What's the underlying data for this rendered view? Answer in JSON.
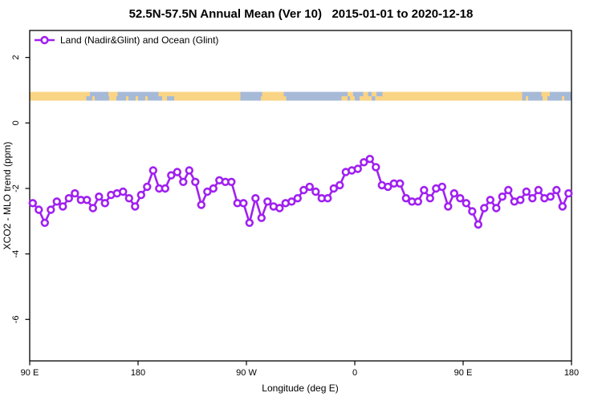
{
  "title": "52.5N-57.5N Annual Mean (Ver 10)   2015-01-01 to 2020-12-18",
  "legend": {
    "label": "Land (Nadir&Glint) and Ocean (Glint)"
  },
  "colors": {
    "line": "#A020F0",
    "marker_fill": "#FFFFFF",
    "land": "#FAD485",
    "ocean": "#A6BAD8",
    "axis": "#000000",
    "background": "#FFFFFF"
  },
  "chart_data": {
    "type": "line",
    "title": "52.5N-57.5N Annual Mean (Ver 10)   2015-01-01 to 2020-12-18",
    "xlabel": "Longitude (deg E)",
    "ylabel": "XCO2 - MLO trend (ppm)",
    "xlim": [
      90,
      540
    ],
    "ylim": [
      -7.3,
      2.9
    ],
    "grid": false,
    "legend_position": "top-left",
    "x_ticks": [
      {
        "pos": 90,
        "label": "90 E"
      },
      {
        "pos": 180,
        "label": "180"
      },
      {
        "pos": 270,
        "label": "90 W"
      },
      {
        "pos": 360,
        "label": "0"
      },
      {
        "pos": 450,
        "label": "90 E"
      },
      {
        "pos": 540,
        "label": "180"
      }
    ],
    "y_ticks": [
      {
        "pos": 2,
        "label": "2"
      },
      {
        "pos": 0,
        "label": "0"
      },
      {
        "pos": -2,
        "label": "-2"
      },
      {
        "pos": -4,
        "label": "-4"
      },
      {
        "pos": -6,
        "label": "-6"
      }
    ],
    "series": [
      {
        "name": "Land (Nadir&Glint) and Ocean (Glint)",
        "marker": "open-circle",
        "x_start_deg": 92.5,
        "x_step_deg": 5,
        "values": [
          -2.45,
          -2.65,
          -3.05,
          -2.65,
          -2.4,
          -2.55,
          -2.3,
          -2.15,
          -2.35,
          -2.35,
          -2.6,
          -2.25,
          -2.45,
          -2.2,
          -2.15,
          -2.1,
          -2.3,
          -2.55,
          -2.2,
          -1.95,
          -1.45,
          -2.0,
          -2.0,
          -1.6,
          -1.5,
          -1.8,
          -1.45,
          -1.8,
          -2.5,
          -2.1,
          -2.0,
          -1.75,
          -1.8,
          -1.8,
          -2.45,
          -2.45,
          -3.05,
          -2.3,
          -2.9,
          -2.4,
          -2.55,
          -2.6,
          -2.45,
          -2.4,
          -2.3,
          -2.05,
          -1.95,
          -2.1,
          -2.3,
          -2.3,
          -2.0,
          -1.9,
          -1.5,
          -1.45,
          -1.4,
          -1.2,
          -1.1,
          -1.35,
          -1.9,
          -1.95,
          -1.85,
          -1.85,
          -2.3,
          -2.4,
          -2.4,
          -2.05,
          -2.3,
          -2.0,
          -1.95,
          -2.55,
          -2.15,
          -2.3,
          -2.45,
          -2.7,
          -3.1,
          -2.6,
          -2.35,
          -2.6,
          -2.25,
          -2.05,
          -2.4,
          -2.35,
          -2.1,
          -2.3,
          -2.05,
          -2.3,
          -2.25,
          -2.05,
          -2.55,
          -2.15
        ]
      }
    ],
    "map_band": {
      "description": "world coastline strip for latitude band 52.5N-57.5N drawn across plot at ~0.8 ppm",
      "y_center_ppm": 0.78,
      "rows": [
        {
          "name": "55N-57.5N",
          "segments": [
            [
              90,
              140,
              "land"
            ],
            [
              140,
              155.5,
              "ocean"
            ],
            [
              155.5,
              163,
              "land"
            ],
            [
              163,
              197,
              "ocean"
            ],
            [
              197,
              265,
              "land"
            ],
            [
              265,
              283,
              "ocean"
            ],
            [
              283,
              301,
              "land"
            ],
            [
              301,
              354,
              "ocean"
            ],
            [
              354,
              358.5,
              "land"
            ],
            [
              358.5,
              367,
              "ocean"
            ],
            [
              367,
              371,
              "land"
            ],
            [
              371,
              374,
              "ocean"
            ],
            [
              374,
              378,
              "land"
            ],
            [
              378,
              383,
              "ocean"
            ],
            [
              383,
              499,
              "land"
            ],
            [
              499,
              515,
              "ocean"
            ],
            [
              515,
              522,
              "land"
            ],
            [
              522,
              540,
              "ocean"
            ]
          ]
        },
        {
          "name": "52.5N-55N",
          "segments": [
            [
              90,
              137,
              "land"
            ],
            [
              137,
              142,
              "ocean"
            ],
            [
              142,
              144,
              "land"
            ],
            [
              144,
              156,
              "ocean"
            ],
            [
              156,
              162,
              "land"
            ],
            [
              162,
              170,
              "ocean"
            ],
            [
              170,
              172,
              "land"
            ],
            [
              172,
              178,
              "ocean"
            ],
            [
              178,
              180,
              "land"
            ],
            [
              180,
              186,
              "ocean"
            ],
            [
              186,
              188,
              "land"
            ],
            [
              188,
              200,
              "ocean"
            ],
            [
              200,
              204,
              "land"
            ],
            [
              204,
              210,
              "ocean"
            ],
            [
              210,
              265,
              "land"
            ],
            [
              265,
              282,
              "ocean"
            ],
            [
              282,
              303,
              "land"
            ],
            [
              303,
              349,
              "ocean"
            ],
            [
              349,
              354,
              "land"
            ],
            [
              354,
              356,
              "ocean"
            ],
            [
              356,
              360,
              "land"
            ],
            [
              360,
              364,
              "ocean"
            ],
            [
              364,
              374,
              "land"
            ],
            [
              374,
              377,
              "ocean"
            ],
            [
              377,
              499,
              "land"
            ],
            [
              499,
              502,
              "ocean"
            ],
            [
              502,
              504,
              "land"
            ],
            [
              504,
              516,
              "ocean"
            ],
            [
              516,
              520,
              "land"
            ],
            [
              520,
              532,
              "ocean"
            ],
            [
              532,
              534,
              "land"
            ],
            [
              534,
              540,
              "ocean"
            ]
          ]
        }
      ]
    }
  }
}
